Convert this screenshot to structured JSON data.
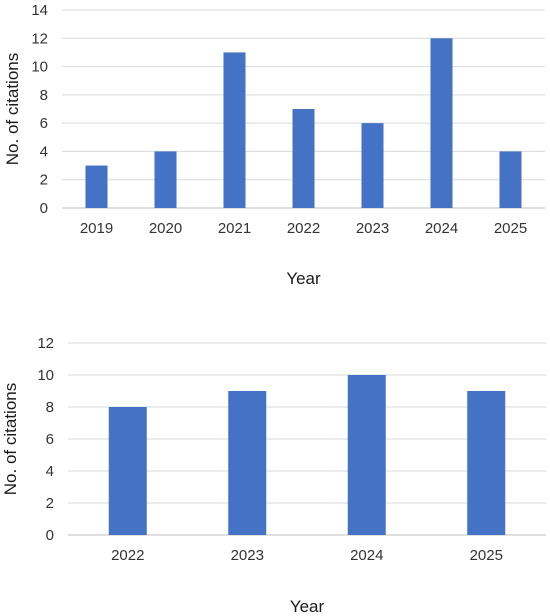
{
  "chart_data": [
    {
      "type": "bar",
      "categories": [
        "2019",
        "2020",
        "2021",
        "2022",
        "2023",
        "2024",
        "2025"
      ],
      "values": [
        3,
        4,
        11,
        7,
        6,
        12,
        4
      ],
      "xlabel": "Year",
      "ylabel": "No. of citations",
      "ylim": [
        0,
        14
      ],
      "yticks": [
        0,
        2,
        4,
        6,
        8,
        10,
        12,
        14
      ],
      "grid": true,
      "bar_color": "#4472c4"
    },
    {
      "type": "bar",
      "categories": [
        "2022",
        "2023",
        "2024",
        "2025"
      ],
      "values": [
        8,
        9,
        10,
        9
      ],
      "xlabel": "Year",
      "ylabel": "No. of citations",
      "ylim": [
        0,
        12
      ],
      "yticks": [
        0,
        2,
        4,
        6,
        8,
        10,
        12
      ],
      "grid": true,
      "bar_color": "#4472c4"
    }
  ]
}
